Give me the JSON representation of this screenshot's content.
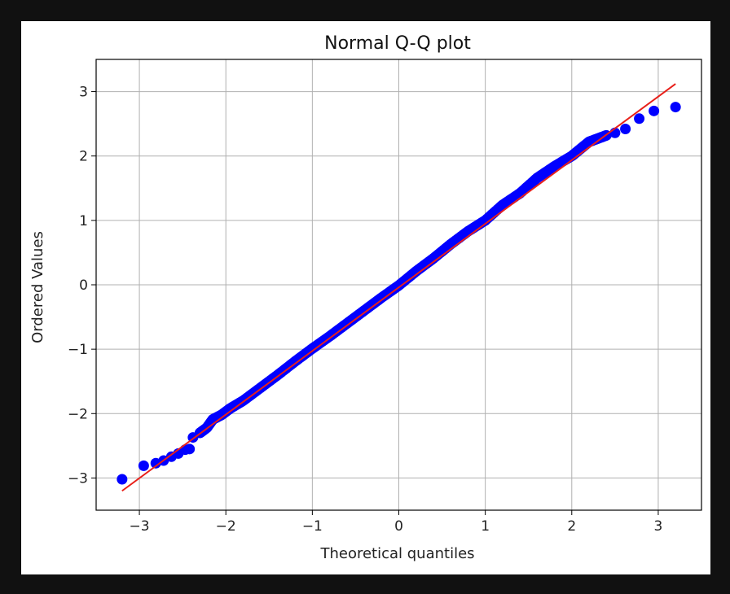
{
  "chart_data": {
    "type": "scatter",
    "title": "Normal Q-Q plot",
    "xlabel": "Theoretical quantiles",
    "ylabel": "Ordered Values",
    "xlim": [
      -3.5,
      3.5
    ],
    "ylim": [
      -3.5,
      3.5
    ],
    "xticks": [
      -3,
      -2,
      -1,
      0,
      1,
      2,
      3
    ],
    "yticks": [
      -3,
      -2,
      -1,
      0,
      1,
      2,
      3
    ],
    "xtick_labels": [
      "−3",
      "−2",
      "−1",
      "0",
      "1",
      "2",
      "3"
    ],
    "ytick_labels": [
      "−3",
      "−2",
      "−1",
      "0",
      "1",
      "2",
      "3"
    ],
    "grid": true,
    "colors": {
      "points": "#0000ff",
      "fit_line": "#e8201a",
      "grid": "#b0b0b0"
    },
    "series": [
      {
        "kind": "points",
        "x": [
          -3.2,
          -2.95,
          -2.81,
          -2.72,
          -2.63,
          -2.55,
          -2.47,
          -2.42,
          -2.38,
          -2.3,
          -2.22,
          -2.15,
          -2.05,
          -1.95,
          -1.8,
          -1.6,
          -1.4,
          -1.2,
          -1.0,
          -0.8,
          -0.6,
          -0.4,
          -0.2,
          0.0,
          0.2,
          0.4,
          0.6,
          0.8,
          1.0,
          1.2,
          1.4,
          1.6,
          1.8,
          2.0,
          2.1,
          2.2,
          2.3,
          2.4,
          2.5,
          2.62,
          2.78,
          2.95,
          3.2
        ],
        "y": [
          -3.02,
          -2.81,
          -2.77,
          -2.73,
          -2.67,
          -2.62,
          -2.56,
          -2.55,
          -2.37,
          -2.3,
          -2.22,
          -2.09,
          -2.02,
          -1.92,
          -1.8,
          -1.6,
          -1.4,
          -1.19,
          -0.99,
          -0.8,
          -0.6,
          -0.4,
          -0.2,
          -0.01,
          0.21,
          0.41,
          0.63,
          0.83,
          1.0,
          1.24,
          1.42,
          1.66,
          1.84,
          2.0,
          2.11,
          2.22,
          2.27,
          2.32,
          2.36,
          2.42,
          2.58,
          2.7,
          2.76
        ]
      },
      {
        "kind": "fit_line",
        "x": [
          -3.2,
          3.2
        ],
        "y": [
          -3.2,
          3.12
        ]
      }
    ]
  }
}
